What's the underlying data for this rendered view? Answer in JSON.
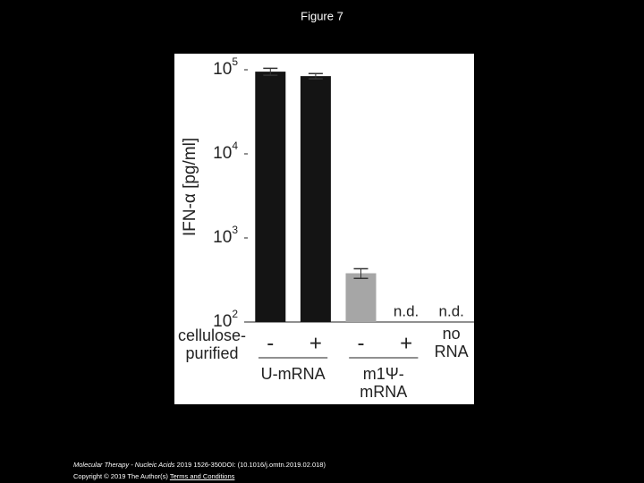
{
  "slide_title": "Figure 7",
  "chart_data": {
    "type": "bar",
    "ylabel": "IFN-α [pg/ml]",
    "log_scale": true,
    "ylim": [
      100,
      100000
    ],
    "yticks": [
      {
        "value": 100,
        "label": "10",
        "exp": "2"
      },
      {
        "value": 1000,
        "label": "10",
        "exp": "3"
      },
      {
        "value": 10000,
        "label": "10",
        "exp": "4"
      },
      {
        "value": 100000,
        "label": "10",
        "exp": "5"
      }
    ],
    "categories": [
      "-",
      "+",
      "-",
      "+",
      "no RNA"
    ],
    "values": [
      95000,
      84000,
      380,
      null,
      null
    ],
    "errors": [
      9000,
      6000,
      50,
      null,
      null
    ],
    "value_labels": [
      null,
      null,
      null,
      "n.d.",
      "n.d."
    ],
    "colors": [
      "#141414",
      "#141414",
      "#a6a6a6",
      "#a6a6a6",
      "#a6a6a6"
    ],
    "row_label": "cellulose-purified",
    "groups": [
      "U-mRNA",
      "m1Ψ-mRNA"
    ]
  },
  "footer": {
    "journal": "Molecular Therapy - Nucleic Acids",
    "citation": "2019 1526-350DOI: (10.1016/j.omtn.2019.02.018)",
    "copyright": "Copyright © 2019 The Author(s)",
    "link": "Terms and Conditions"
  }
}
